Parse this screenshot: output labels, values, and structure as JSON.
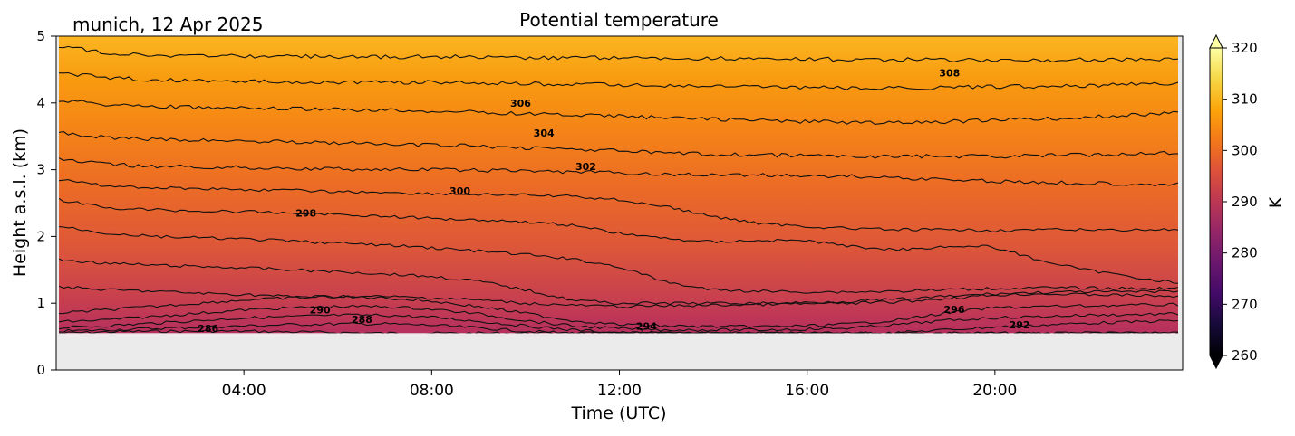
{
  "figure": {
    "location_date": "munich, 12 Apr 2025"
  },
  "chart_data": {
    "type": "heatmap",
    "title": "Potential temperature",
    "xlabel": "Time (UTC)",
    "ylabel": "Height a.s.l. (km)",
    "x_unit": "hours UTC",
    "xlim": [
      0,
      24
    ],
    "ylim": [
      0,
      5
    ],
    "x_tick_values": [
      4,
      8,
      12,
      16,
      20
    ],
    "x_tick_labels": [
      "04:00",
      "08:00",
      "12:00",
      "16:00",
      "20:00"
    ],
    "y_tick_values": [
      0,
      1,
      2,
      3,
      4,
      5
    ],
    "y_tick_labels": [
      "0",
      "1",
      "2",
      "3",
      "4",
      "5"
    ],
    "data_bottom_km": 0.55,
    "colormap": "inferno",
    "colorbar": {
      "label": "K",
      "range": [
        260,
        320
      ],
      "extend": "both",
      "tick_values": [
        260,
        270,
        280,
        290,
        300,
        310,
        320
      ],
      "tick_labels": [
        "260",
        "270",
        "280",
        "290",
        "300",
        "310",
        "320"
      ]
    },
    "contour_levels": [
      {
        "level": 286,
        "height_km": [
          0.55,
          0.57,
          0.58,
          0.58,
          0.58,
          0.57,
          0.56,
          0.55,
          0.55,
          0.55,
          0.55,
          0.55,
          0.55,
          0.55,
          0.55,
          0.55,
          0.55,
          0.55,
          0.55,
          0.55,
          0.55,
          0.55,
          0.55,
          0.55,
          0.55
        ]
      },
      {
        "level": 288,
        "height_km": [
          0.58,
          0.6,
          0.62,
          0.64,
          0.66,
          0.68,
          0.69,
          0.69,
          0.67,
          0.63,
          0.58,
          0.55,
          0.55,
          0.55,
          0.55,
          0.55,
          0.55,
          0.55,
          0.55,
          0.55,
          0.55,
          0.55,
          0.55,
          0.55,
          0.55
        ]
      },
      {
        "level": 290,
        "height_km": [
          0.63,
          0.66,
          0.7,
          0.74,
          0.78,
          0.8,
          0.82,
          0.82,
          0.79,
          0.73,
          0.66,
          0.6,
          0.56,
          0.55,
          0.55,
          0.55,
          0.55,
          0.55,
          0.56,
          0.6,
          0.64,
          0.67,
          0.7,
          0.72,
          0.74
        ]
      },
      {
        "level": 292,
        "height_km": [
          0.72,
          0.75,
          0.8,
          0.85,
          0.9,
          0.93,
          0.95,
          0.95,
          0.91,
          0.84,
          0.74,
          0.66,
          0.62,
          0.6,
          0.6,
          0.6,
          0.61,
          0.63,
          0.68,
          0.74,
          0.78,
          0.8,
          0.82,
          0.83,
          0.84
        ]
      },
      {
        "level": 294,
        "height_km": [
          0.85,
          0.9,
          0.95,
          1.0,
          1.05,
          1.08,
          1.1,
          1.08,
          1.03,
          0.95,
          0.85,
          0.74,
          0.68,
          0.66,
          0.65,
          0.65,
          0.66,
          0.69,
          0.75,
          0.85,
          0.93,
          0.95,
          0.96,
          0.97,
          0.98
        ]
      },
      {
        "level": 296,
        "height_km": [
          1.25,
          1.2,
          1.18,
          1.15,
          1.13,
          1.1,
          1.1,
          1.1,
          1.08,
          1.05,
          1.0,
          0.97,
          0.95,
          0.96,
          0.97,
          0.98,
          0.99,
          1.0,
          1.02,
          1.07,
          1.12,
          1.14,
          1.13,
          1.12,
          1.1
        ]
      },
      {
        "level": 297,
        "height_km": [
          1.65,
          1.6,
          1.57,
          1.55,
          1.53,
          1.5,
          1.47,
          1.44,
          1.4,
          1.33,
          1.2,
          1.05,
          1.0,
          1.0,
          1.0,
          1.0,
          1.01,
          1.03,
          1.06,
          1.1,
          1.14,
          1.16,
          1.17,
          1.17,
          1.18
        ]
      },
      {
        "level": 298,
        "height_km": [
          2.15,
          2.05,
          2.0,
          1.98,
          1.96,
          1.93,
          1.9,
          1.87,
          1.83,
          1.78,
          1.73,
          1.66,
          1.55,
          1.32,
          1.2,
          1.18,
          1.17,
          1.17,
          1.18,
          1.2,
          1.22,
          1.23,
          1.23,
          1.22,
          1.22
        ]
      },
      {
        "level": 299,
        "height_km": [
          2.55,
          2.43,
          2.4,
          2.38,
          2.37,
          2.35,
          2.33,
          2.3,
          2.27,
          2.25,
          2.22,
          2.17,
          2.05,
          1.97,
          1.92,
          1.94,
          1.94,
          1.85,
          1.8,
          1.85,
          1.85,
          1.65,
          1.5,
          1.4,
          1.3
        ]
      },
      {
        "level": 300,
        "height_km": [
          2.85,
          2.76,
          2.73,
          2.72,
          2.7,
          2.69,
          2.67,
          2.66,
          2.64,
          2.63,
          2.62,
          2.6,
          2.55,
          2.45,
          2.3,
          2.2,
          2.15,
          2.12,
          2.1,
          2.1,
          2.09,
          2.1,
          2.1,
          2.1,
          2.1
        ]
      },
      {
        "level": 302,
        "height_km": [
          3.15,
          3.08,
          3.05,
          3.04,
          3.03,
          3.02,
          3.01,
          3.0,
          3.0,
          2.99,
          2.98,
          2.97,
          2.95,
          2.93,
          2.92,
          2.92,
          2.91,
          2.9,
          2.88,
          2.85,
          2.83,
          2.81,
          2.8,
          2.79,
          2.78
        ]
      },
      {
        "level": 304,
        "height_km": [
          3.55,
          3.48,
          3.45,
          3.44,
          3.43,
          3.42,
          3.4,
          3.38,
          3.37,
          3.35,
          3.33,
          3.31,
          3.28,
          3.25,
          3.23,
          3.22,
          3.21,
          3.2,
          3.2,
          3.2,
          3.2,
          3.21,
          3.22,
          3.24,
          3.26
        ]
      },
      {
        "level": 306,
        "height_km": [
          4.05,
          3.98,
          3.95,
          3.93,
          3.92,
          3.91,
          3.9,
          3.89,
          3.88,
          3.86,
          3.84,
          3.82,
          3.8,
          3.78,
          3.76,
          3.74,
          3.72,
          3.71,
          3.7,
          3.72,
          3.74,
          3.76,
          3.78,
          3.82,
          3.86
        ]
      },
      {
        "level": 308,
        "height_km": [
          4.45,
          4.38,
          4.35,
          4.33,
          4.32,
          4.32,
          4.31,
          4.31,
          4.31,
          4.3,
          4.29,
          4.28,
          4.27,
          4.26,
          4.25,
          4.24,
          4.23,
          4.22,
          4.22,
          4.23,
          4.24,
          4.25,
          4.26,
          4.28,
          4.3
        ]
      },
      {
        "level": 310,
        "height_km": [
          4.85,
          4.75,
          4.72,
          4.7,
          4.7,
          4.7,
          4.69,
          4.69,
          4.69,
          4.69,
          4.68,
          4.68,
          4.68,
          4.67,
          4.67,
          4.66,
          4.66,
          4.65,
          4.65,
          4.64,
          4.64,
          4.64,
          4.65,
          4.65,
          4.66
        ]
      }
    ],
    "contour_labels": [
      {
        "text": "286",
        "x": 3.2,
        "y": 0.62
      },
      {
        "text": "288",
        "x": 6.5,
        "y": 0.76
      },
      {
        "text": "290",
        "x": 5.6,
        "y": 0.9
      },
      {
        "text": "294",
        "x": 12.6,
        "y": 0.66
      },
      {
        "text": "296",
        "x": 19.2,
        "y": 0.91
      },
      {
        "text": "292",
        "x": 20.6,
        "y": 0.68
      },
      {
        "text": "298",
        "x": 5.3,
        "y": 2.35
      },
      {
        "text": "300",
        "x": 8.6,
        "y": 2.68
      },
      {
        "text": "302",
        "x": 11.3,
        "y": 3.05
      },
      {
        "text": "304",
        "x": 10.4,
        "y": 3.55
      },
      {
        "text": "306",
        "x": 9.9,
        "y": 4.0
      },
      {
        "text": "308",
        "x": 19.1,
        "y": 4.45
      }
    ]
  }
}
